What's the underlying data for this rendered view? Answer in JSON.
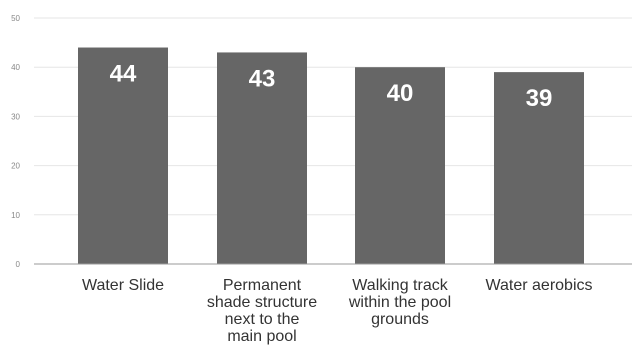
{
  "chart_data": {
    "type": "bar",
    "categories": [
      [
        "Water Slide"
      ],
      [
        "Permanent",
        "shade structure",
        "next to the",
        "main pool"
      ],
      [
        "Walking track",
        "within the pool",
        "grounds"
      ],
      [
        "Water aerobics"
      ]
    ],
    "values": [
      44,
      43,
      40,
      39
    ],
    "data_labels": [
      "44",
      "43",
      "40",
      "39"
    ],
    "ylim": [
      0,
      50
    ],
    "yticks": [
      0,
      10,
      20,
      30,
      40,
      50
    ],
    "ytick_labels": [
      "0",
      "10",
      "20",
      "30",
      "40",
      "50"
    ],
    "grid": true,
    "colors": {
      "bar": "#666666",
      "grid": "#e6e6e6",
      "axis": "#999999",
      "data_label": "#ffffff"
    }
  }
}
